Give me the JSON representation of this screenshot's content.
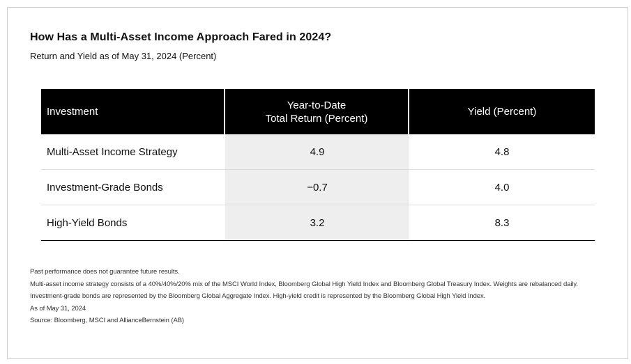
{
  "title": "How Has a Multi-Asset Income Approach Fared in 2024?",
  "subtitle": "Return and Yield as of May 31, 2024 (Percent)",
  "chart_data": {
    "type": "table",
    "columns": [
      "Investment",
      "Year-to-Date Total Return (Percent)",
      "Yield (Percent)"
    ],
    "header": {
      "investment": "Investment",
      "ytd_line1": "Year-to-Date",
      "ytd_line2": "Total Return (Percent)",
      "yield": "Yield (Percent)"
    },
    "rows": [
      {
        "investment": "Multi-Asset Income Strategy",
        "ytd": "4.9",
        "yield": "4.8"
      },
      {
        "investment": "Investment-Grade Bonds",
        "ytd": "−0.7",
        "yield": "4.0"
      },
      {
        "investment": "High-Yield Bonds",
        "ytd": "3.2",
        "yield": "8.3"
      }
    ]
  },
  "notes": [
    "Past performance does not guarantee future results.",
    "Multi-asset income strategy consists of a 40%/40%/20% mix of the MSCI World Index, Bloomberg Global High Yield Index and Bloomberg Global Treasury Index. Weights are rebalanced daily.",
    "Investment-grade bonds are represented by the Bloomberg Global Aggregate Index. High-yield credit is represented by the Bloomberg Global High Yield Index.",
    "As of May 31, 2024",
    "Source: Bloomberg, MSCI and AllianceBernstein (AB)"
  ],
  "colors": {
    "header_bg": "#000000",
    "shaded_column": "#eeeeee",
    "text": "#111111"
  }
}
